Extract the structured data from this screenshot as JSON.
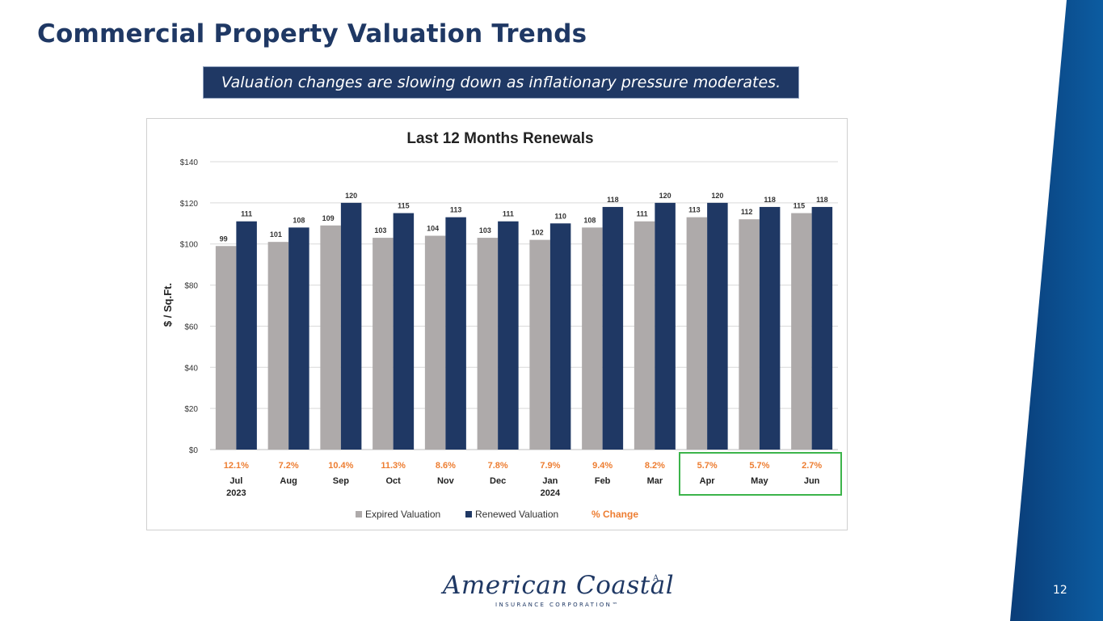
{
  "title": "Commercial Property Valuation Trends",
  "subtitle": "Valuation changes are slowing down as inflationary pressure moderates.",
  "page_number": "12",
  "logo": {
    "name": "American Coastal",
    "mark": "A",
    "tagline": "INSURANCE CORPORATION™"
  },
  "colors": {
    "title": "#1f3864",
    "expired": "#aeaaaa",
    "renewed": "#1f3864",
    "pct": "#ed7d31",
    "highlight": "#3cb44b"
  },
  "chart_data": {
    "type": "bar",
    "title": "Last 12 Months Renewals",
    "ylabel": "$ / Sq.Ft.",
    "ylim": [
      0,
      140
    ],
    "yticks": [
      0,
      20,
      40,
      60,
      80,
      100,
      120,
      140
    ],
    "ytick_labels": [
      "$0",
      "$20",
      "$40",
      "$60",
      "$80",
      "$100",
      "$120",
      "$140"
    ],
    "categories": [
      "Jul",
      "Aug",
      "Sep",
      "Oct",
      "Nov",
      "Dec",
      "Jan",
      "Feb",
      "Mar",
      "Apr",
      "May",
      "Jun"
    ],
    "category_years": [
      "2023",
      "",
      "",
      "",
      "",
      "",
      "2024",
      "",
      "",
      "",
      "",
      ""
    ],
    "series": [
      {
        "name": "Expired Valuation",
        "values": [
          99,
          101,
          109,
          103,
          104,
          103,
          102,
          108,
          111,
          113,
          112,
          115
        ]
      },
      {
        "name": "Renewed Valuation",
        "values": [
          111,
          108,
          120,
          115,
          113,
          111,
          110,
          118,
          120,
          120,
          118,
          118
        ]
      }
    ],
    "pct_change_label": "% Change",
    "pct_change": [
      "12.1%",
      "7.2%",
      "10.4%",
      "11.3%",
      "8.6%",
      "7.8%",
      "7.9%",
      "9.4%",
      "8.2%",
      "5.7%",
      "5.7%",
      "2.7%"
    ],
    "highlighted_categories": [
      "Apr",
      "May",
      "Jun"
    ],
    "gridlines": true,
    "legend_position": "bottom"
  }
}
